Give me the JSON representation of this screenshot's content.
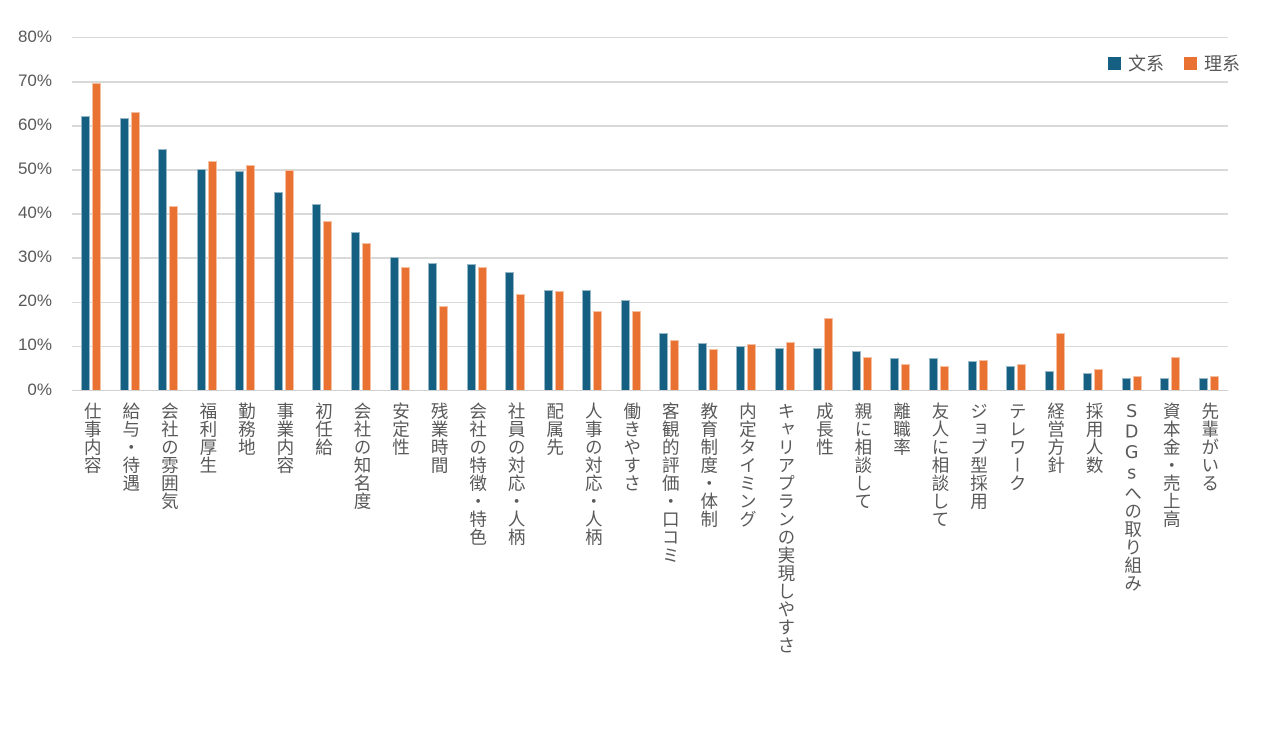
{
  "chart_data": {
    "type": "bar",
    "title": "",
    "xlabel": "",
    "ylabel": "",
    "ylim": [
      0,
      0.8
    ],
    "yticks": [
      "0%",
      "10%",
      "20%",
      "30%",
      "40%",
      "50%",
      "60%",
      "70%",
      "80%"
    ],
    "grid": true,
    "legend_position": "top-right",
    "categories": [
      "仕事内容",
      "給与・待遇",
      "会社の雰囲気",
      "福利厚生",
      "勤務地",
      "事業内容",
      "初任給",
      "会社の知名度",
      "安定性",
      "残業時間",
      "会社の特徴・特色",
      "社員の対応・人柄",
      "配属先",
      "人事の対応・人柄",
      "働きやすさ",
      "客観的評価・口コミ",
      "教育制度・体制",
      "内定タイミング",
      "キャリアプランの実現しやすさ",
      "成長性",
      "親に相談して",
      "離職率",
      "友人に相談して",
      "ジョブ型採用",
      "テレワーク",
      "経営方針",
      "採用人数",
      "SDGsへの取り組み",
      "資本金・売上高",
      "先輩がいる"
    ],
    "series": [
      {
        "name": "文系",
        "color": "#156082",
        "values": [
          62.2,
          61.7,
          54.8,
          50.2,
          49.7,
          45.1,
          42.2,
          35.9,
          30.2,
          29.0,
          28.6,
          26.8,
          22.9,
          22.9,
          20.5,
          13.1,
          10.8,
          10.2,
          9.7,
          9.7,
          9.0,
          7.3,
          7.3,
          6.7,
          5.6,
          4.5,
          3.9,
          2.8,
          2.8,
          2.8
        ]
      },
      {
        "name": "理系",
        "color": "#E97132",
        "values": [
          69.7,
          63.1,
          41.8,
          52.1,
          51.1,
          49.9,
          38.4,
          33.4,
          28.0,
          19.2,
          28.1,
          21.9,
          22.5,
          18.0,
          18.0,
          11.4,
          9.3,
          10.5,
          11.0,
          16.4,
          7.6,
          6.0,
          5.5,
          7.0,
          6.0,
          13.1,
          4.8,
          3.2,
          7.6,
          3.2
        ]
      }
    ],
    "units": "%"
  },
  "legend": {
    "items": [
      {
        "label": "文系",
        "color": "#156082"
      },
      {
        "label": "理系",
        "color": "#E97132"
      }
    ]
  }
}
